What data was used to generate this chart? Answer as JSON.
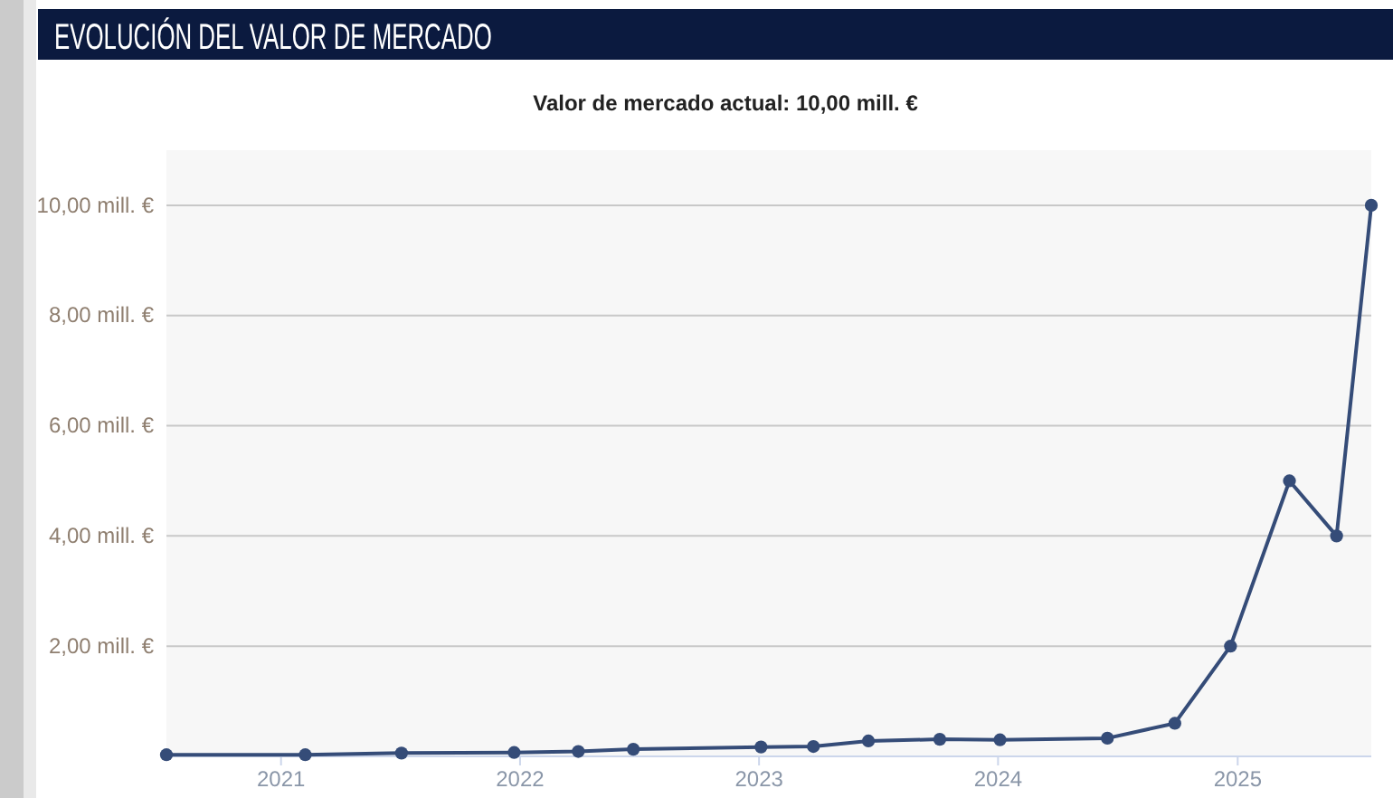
{
  "chart_data": {
    "type": "line",
    "title": "EVOLUCIÓN DEL VALOR DE MERCADO",
    "subtitle": "Valor de mercado actual: 10,00 mill. €",
    "x": [
      "2020-07-10",
      "2021-02-07",
      "2021-07-04",
      "2021-12-23",
      "2022-03-31",
      "2022-06-23",
      "2023-01-04",
      "2023-03-25",
      "2023-06-17",
      "2023-10-04",
      "2024-01-04",
      "2024-06-16",
      "2024-09-27",
      "2024-12-21",
      "2025-03-21",
      "2025-06-01",
      "2025-07-24"
    ],
    "series": [
      {
        "color": "#354c78",
        "values": [
          0.03,
          0.03,
          0.06,
          0.07,
          0.09,
          0.13,
          0.17,
          0.18,
          0.28,
          0.31,
          0.3,
          0.33,
          0.6,
          2,
          5,
          4,
          10
        ]
      }
    ],
    "xlim": [
      "2020-07-10",
      "2025-07-24"
    ],
    "xticks": [
      "2021",
      "2022",
      "2023",
      "2024",
      "2025"
    ],
    "ylim": [
      0,
      11
    ],
    "yticks": [
      {
        "value": 2,
        "label": "2,00 mill. €"
      },
      {
        "value": 4,
        "label": "4,00 mill. €"
      },
      {
        "value": 6,
        "label": "6,00 mill. €"
      },
      {
        "value": 8,
        "label": "8,00 mill. €"
      },
      {
        "value": 10,
        "label": "10,00 mill. €"
      }
    ],
    "grid": "y",
    "marker": "circle"
  }
}
